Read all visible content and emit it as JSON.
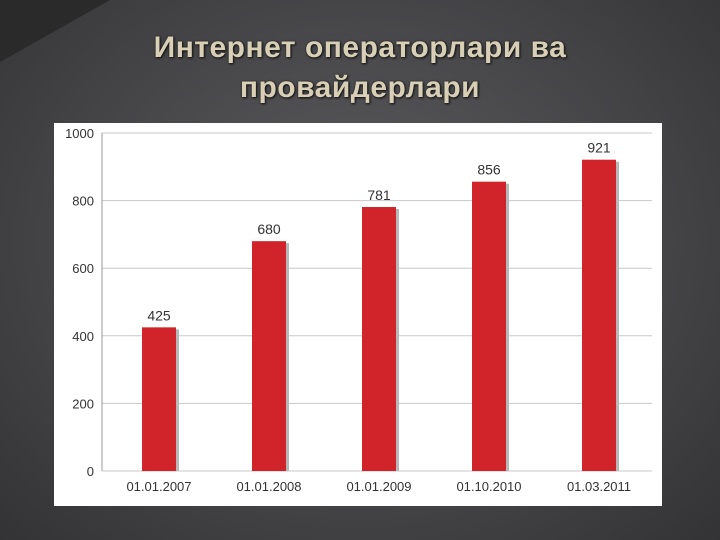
{
  "slide": {
    "title": "Интернет операторлари ва провайдерлари"
  },
  "chart_data": {
    "type": "bar",
    "categories": [
      "01.01.2007",
      "01.01.2008",
      "01.01.2009",
      "01.10.2010",
      "01.03.2011"
    ],
    "values": [
      425,
      680,
      781,
      856,
      921
    ],
    "yticks": [
      0,
      200,
      400,
      600,
      800,
      1000
    ],
    "ylim": [
      0,
      1000
    ],
    "grid": true,
    "data_labels": true,
    "bar_color": "#d0232a",
    "title": "",
    "xlabel": "",
    "ylabel": ""
  }
}
